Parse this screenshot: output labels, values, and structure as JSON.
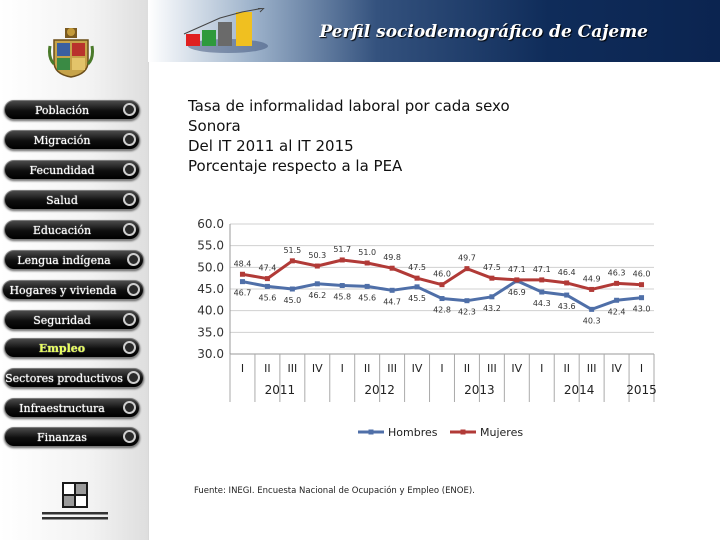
{
  "header": {
    "title": "Perfil sociodemográfico de Cajeme"
  },
  "sidebar": {
    "items": [
      {
        "label": "Población"
      },
      {
        "label": "Migración"
      },
      {
        "label": "Fecundidad"
      },
      {
        "label": "Salud"
      },
      {
        "label": "Educación"
      },
      {
        "label": "Lengua indígena"
      },
      {
        "label": "Hogares y vivienda"
      },
      {
        "label": "Seguridad"
      },
      {
        "label": "Empleo"
      },
      {
        "label": "Sectores productivos"
      },
      {
        "label": "Infraestructura"
      },
      {
        "label": "Finanzas"
      }
    ],
    "active": "Empleo"
  },
  "chart_title": {
    "line1": "Tasa de informalidad laboral por cada sexo",
    "line2": "Sonora",
    "line3": "Del IT 2011 al IT 2015",
    "line4": "Porcentaje respecto a la PEA"
  },
  "chart_data": {
    "type": "line",
    "ylim": [
      30.0,
      60.0
    ],
    "yticks": [
      "30.0",
      "35.0",
      "40.0",
      "45.0",
      "50.0",
      "55.0",
      "60.0"
    ],
    "quarters": [
      "I",
      "II",
      "III",
      "IV",
      "I",
      "II",
      "III",
      "IV",
      "I",
      "II",
      "III",
      "IV",
      "I",
      "II",
      "III",
      "IV",
      "I"
    ],
    "years": [
      "2011",
      "2012",
      "2013",
      "2014",
      "2015"
    ],
    "series": [
      {
        "name": "Hombres",
        "color": "#4f6fa8",
        "values": [
          46.7,
          45.6,
          45.0,
          46.2,
          45.8,
          45.6,
          44.7,
          45.5,
          42.8,
          42.3,
          43.2,
          46.9,
          44.3,
          43.6,
          40.3,
          42.4,
          43.0
        ],
        "labels": [
          "46.7",
          "45.6",
          "45.0",
          "46.2",
          "45.8",
          "45.6",
          "44.7",
          "45.5",
          "42.8",
          "42.3",
          "43.2",
          "46.9",
          "44.3",
          "43.6",
          "40.3",
          "42.4",
          "43.0"
        ]
      },
      {
        "name": "Mujeres",
        "color": "#b13a37",
        "values": [
          48.4,
          47.4,
          51.5,
          50.3,
          51.7,
          51.0,
          49.8,
          47.5,
          46.0,
          49.7,
          47.5,
          47.1,
          47.1,
          46.4,
          44.9,
          46.3,
          46.0
        ],
        "labels": [
          "48.4",
          "47.4",
          "51.5",
          "50.3",
          "51.7",
          "51.0",
          "49.8",
          "47.5",
          "46.0",
          "49.7",
          "47.5",
          "47.1",
          "47.1",
          "46.4",
          "44.9",
          "46.3",
          "46.0"
        ]
      }
    ],
    "grid": true,
    "legend": "bottom"
  },
  "source": "Fuente: INEGI. Encuesta Nacional de Ocupación y Empleo (ENOE)."
}
